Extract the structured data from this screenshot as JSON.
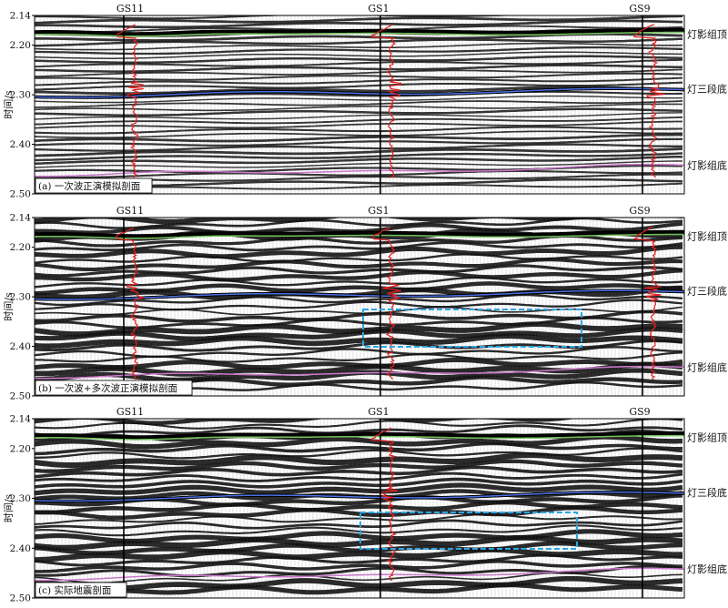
{
  "y_axis_label": "时间/s",
  "wells": [
    "GS11",
    "GS1",
    "GS9"
  ],
  "horizons": [
    {
      "name": "灯影组顶",
      "color": "#6fc05a"
    },
    {
      "name": "灯三段底",
      "color": "#4a6fe0"
    },
    {
      "name": "灯影组底",
      "color": "#cc77cc"
    }
  ],
  "panels": [
    {
      "caption": "(a) 一次波正演模拟剖面",
      "style": "synthetic",
      "box": false
    },
    {
      "caption": "(b) 一次波+多次波正演模拟剖面",
      "style": "multiple",
      "box": true
    },
    {
      "caption": "(c) 实际地震剖面",
      "style": "real",
      "box": true
    }
  ],
  "ticks": [
    "2.14",
    "2.20",
    "2.30",
    "2.40",
    "2.50"
  ],
  "chart_data": {
    "type": "seismic-section",
    "y_range": [
      2.14,
      2.5
    ],
    "well_log_color": "#e02020",
    "highlight_box_color": "#2aa6e6"
  }
}
